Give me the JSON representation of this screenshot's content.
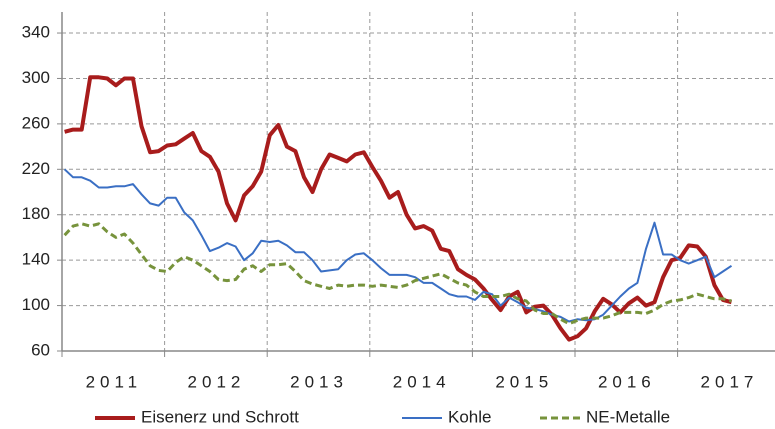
{
  "chart_data": {
    "type": "line",
    "categories": [
      null,
      null,
      null,
      null,
      null,
      null,
      "2011",
      null,
      null,
      null,
      null,
      null,
      null,
      null,
      null,
      null,
      null,
      null,
      "2012",
      null,
      null,
      null,
      null,
      null,
      null,
      null,
      null,
      null,
      null,
      null,
      "2013",
      null,
      null,
      null,
      null,
      null,
      null,
      null,
      null,
      null,
      null,
      null,
      "2014",
      null,
      null,
      null,
      null,
      null,
      null,
      null,
      null,
      null,
      null,
      null,
      "2015",
      null,
      null,
      null,
      null,
      null,
      null,
      null,
      null,
      null,
      null,
      null,
      "2016",
      null,
      null,
      null,
      null,
      null,
      null,
      null,
      null,
      null,
      null,
      null,
      "2017"
    ],
    "series": [
      {
        "name": "Eisenerz und Schrott",
        "color": "#a81c1c",
        "width": 4,
        "dash": false,
        "values": [
          253,
          255,
          255,
          301,
          301,
          300,
          294,
          300,
          300,
          258,
          235,
          236,
          241,
          242,
          247,
          252,
          236,
          231,
          218,
          190,
          175,
          197,
          205,
          218,
          250,
          259,
          240,
          236,
          213,
          200,
          220,
          233,
          230,
          227,
          233,
          235,
          222,
          210,
          195,
          200,
          180,
          168,
          170,
          166,
          150,
          148,
          132,
          127,
          123,
          115,
          105,
          96,
          108,
          112,
          94,
          99,
          100,
          92,
          80,
          70,
          73,
          80,
          95,
          106,
          101,
          94,
          102,
          107,
          100,
          103,
          125,
          140,
          142,
          153,
          152,
          143,
          118,
          105,
          103
        ]
      },
      {
        "name": "Kohle",
        "color": "#3a6fc4",
        "width": 2,
        "dash": false,
        "values": [
          220,
          213,
          213,
          210,
          204,
          204,
          205,
          205,
          207,
          198,
          190,
          188,
          195,
          195,
          182,
          175,
          162,
          148,
          151,
          155,
          152,
          140,
          146,
          157,
          156,
          157,
          153,
          147,
          147,
          140,
          130,
          131,
          132,
          140,
          145,
          146,
          140,
          133,
          127,
          127,
          127,
          125,
          120,
          120,
          115,
          110,
          108,
          108,
          105,
          112,
          110,
          100,
          107,
          103,
          98,
          97,
          95,
          92,
          90,
          86,
          88,
          87,
          88,
          92,
          100,
          108,
          115,
          120,
          150,
          173,
          145,
          145,
          140,
          137,
          140,
          143,
          125,
          130,
          135
        ]
      },
      {
        "name": "NE-Metalle",
        "color": "#77933c",
        "width": 3,
        "dash": true,
        "values": [
          162,
          170,
          172,
          170,
          172,
          165,
          160,
          163,
          155,
          145,
          135,
          131,
          130,
          138,
          143,
          140,
          135,
          130,
          123,
          122,
          123,
          132,
          135,
          130,
          136,
          136,
          137,
          130,
          122,
          119,
          117,
          115,
          118,
          117,
          118,
          118,
          117,
          118,
          117,
          116,
          118,
          122,
          124,
          126,
          128,
          124,
          120,
          118,
          112,
          108,
          108,
          108,
          110,
          106,
          104,
          96,
          93,
          93,
          88,
          84,
          87,
          89,
          89,
          89,
          91,
          94,
          94,
          94,
          93,
          96,
          101,
          104,
          105,
          107,
          110,
          108,
          106,
          106,
          104
        ]
      }
    ],
    "ylim": [
      60,
      355
    ],
    "yticks": [
      60,
      100,
      140,
      180,
      220,
      260,
      300,
      340
    ],
    "grid": true,
    "legend": "bottom"
  }
}
